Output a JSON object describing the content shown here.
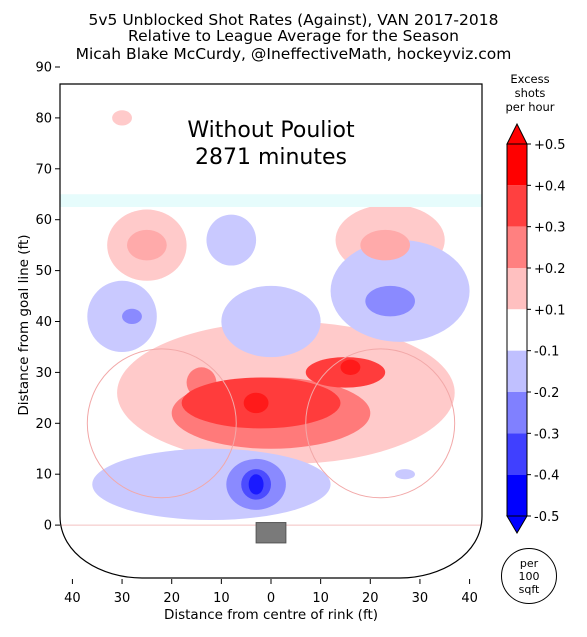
{
  "header": {
    "line1": "5v5 Unblocked Shot Rates (Against), VAN 2017-2018",
    "line2": "Relative to League Average for the Season",
    "line3": "Micah Blake McCurdy, @IneffectiveMath, hockeyviz.com"
  },
  "annotation": {
    "line1": "Without Pouliot",
    "line2": "2871 minutes"
  },
  "colorbar": {
    "title_line1": "Excess",
    "title_line2": "shots",
    "title_line3": "per hour",
    "labels": [
      "+0.5",
      "+0.4",
      "+0.3",
      "+0.2",
      "+0.1",
      "-0.1",
      "-0.2",
      "-0.3",
      "-0.4",
      "-0.5"
    ],
    "colors": [
      "#ff0000",
      "#ff4040",
      "#ff8080",
      "#ffc0c0",
      "#ffffff",
      "#c0c0ff",
      "#8080ff",
      "#4040ff",
      "#0000ff"
    ]
  },
  "units_badge": {
    "line1": "per",
    "line2": "100",
    "line3": "sqft"
  },
  "chart_data": {
    "type": "heatmap",
    "xlabel": "Distance from centre of rink (ft)",
    "ylabel": "Distance from goal line (ft)",
    "xlim": [
      42.5,
      -42.5
    ],
    "ylim": [
      -10,
      90
    ],
    "x_ticks": [
      40,
      30,
      20,
      10,
      0,
      10,
      20,
      30,
      40
    ],
    "x_tick_values": [
      -40,
      -30,
      -20,
      -10,
      0,
      10,
      20,
      30,
      40
    ],
    "y_ticks": [
      0,
      10,
      20,
      30,
      40,
      50,
      60,
      70,
      80,
      90
    ],
    "unit": "excess shots per hour per 100 sqft",
    "regions": [
      {
        "x": 0,
        "y": 22,
        "rx": 20,
        "ry": 7,
        "value": 0.3
      },
      {
        "x": -2,
        "y": 24,
        "rx": 16,
        "ry": 5,
        "value": 0.4
      },
      {
        "x": 15,
        "y": 30,
        "rx": 8,
        "ry": 3,
        "value": 0.4
      },
      {
        "x": -3,
        "y": 24,
        "rx": 2.5,
        "ry": 2,
        "value": 0.5
      },
      {
        "x": 16,
        "y": 31,
        "rx": 2,
        "ry": 1.5,
        "value": 0.5
      },
      {
        "x": -14,
        "y": 28,
        "rx": 3,
        "ry": 3,
        "value": 0.3
      },
      {
        "x": 3,
        "y": 26,
        "rx": 34,
        "ry": 14,
        "value": 0.1
      },
      {
        "x": -25,
        "y": 55,
        "rx": 8,
        "ry": 7,
        "value": 0.1
      },
      {
        "x": -25,
        "y": 55,
        "rx": 4,
        "ry": 3,
        "value": 0.2
      },
      {
        "x": 24,
        "y": 56,
        "rx": 11,
        "ry": 7,
        "value": 0.1
      },
      {
        "x": 23,
        "y": 55,
        "rx": 5,
        "ry": 3,
        "value": 0.2
      },
      {
        "x": -30,
        "y": 80,
        "rx": 2,
        "ry": 1.5,
        "value": 0.1
      },
      {
        "x": -19,
        "y": 20,
        "rx": 2,
        "ry": 1.5,
        "value": 0.1
      },
      {
        "x": 21,
        "y": 20,
        "rx": 2,
        "ry": 1.5,
        "value": 0.1
      },
      {
        "x": -30,
        "y": 41,
        "rx": 7,
        "ry": 7,
        "value": -0.1
      },
      {
        "x": -28,
        "y": 41,
        "rx": 2,
        "ry": 1.5,
        "value": -0.2
      },
      {
        "x": 0,
        "y": 40,
        "rx": 10,
        "ry": 7,
        "value": -0.1
      },
      {
        "x": -8,
        "y": 56,
        "rx": 5,
        "ry": 5,
        "value": -0.1
      },
      {
        "x": 26,
        "y": 46,
        "rx": 14,
        "ry": 10,
        "value": -0.1
      },
      {
        "x": 24,
        "y": 44,
        "rx": 5,
        "ry": 3,
        "value": -0.2
      },
      {
        "x": -12,
        "y": 8,
        "rx": 24,
        "ry": 7,
        "value": -0.1
      },
      {
        "x": -3,
        "y": 8,
        "rx": 6,
        "ry": 5,
        "value": -0.2
      },
      {
        "x": -3,
        "y": 8,
        "rx": 3,
        "ry": 3,
        "value": -0.3
      },
      {
        "x": -3,
        "y": 8,
        "rx": 1.5,
        "ry": 2,
        "value": -0.4
      },
      {
        "x": 27,
        "y": 10,
        "rx": 2,
        "ry": 1,
        "value": -0.1
      }
    ]
  }
}
